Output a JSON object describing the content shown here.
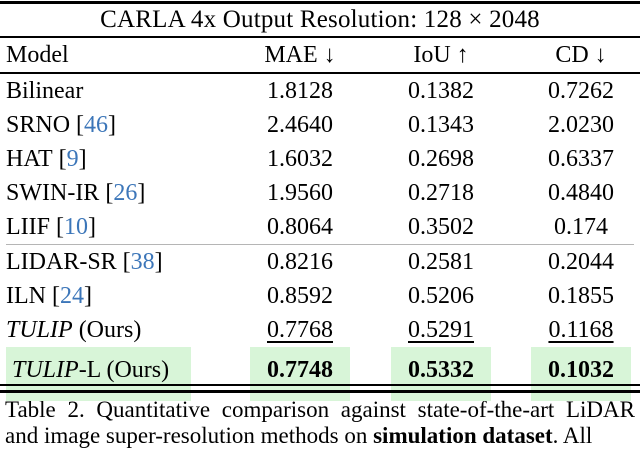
{
  "table": {
    "title": "CARLA 4x Output Resolution: 128 × 2048",
    "columns": [
      {
        "key": "model",
        "label": "Model"
      },
      {
        "key": "mae",
        "label": "MAE ↓"
      },
      {
        "key": "iou",
        "label": "IoU ↑"
      },
      {
        "key": "cd",
        "label": "CD ↓"
      }
    ],
    "rows": [
      {
        "name": "Bilinear",
        "italic": false,
        "cite": "",
        "suffix": "",
        "values": [
          "1.8128",
          "0.1382",
          "0.7262"
        ],
        "underline": false,
        "bold": false,
        "highlight": false,
        "separator_after": false
      },
      {
        "name": "SRNO",
        "italic": false,
        "cite": "46",
        "suffix": "",
        "values": [
          "2.4640",
          "0.1343",
          "2.0230"
        ],
        "underline": false,
        "bold": false,
        "highlight": false,
        "separator_after": false
      },
      {
        "name": "HAT",
        "italic": false,
        "cite": "9",
        "suffix": "",
        "values": [
          "1.6032",
          "0.2698",
          "0.6337"
        ],
        "underline": false,
        "bold": false,
        "highlight": false,
        "separator_after": false
      },
      {
        "name": "SWIN-IR",
        "italic": false,
        "cite": "26",
        "suffix": "",
        "values": [
          "1.9560",
          "0.2718",
          "0.4840"
        ],
        "underline": false,
        "bold": false,
        "highlight": false,
        "separator_after": false
      },
      {
        "name": "LIIF",
        "italic": false,
        "cite": "10",
        "suffix": "",
        "values": [
          "0.8064",
          "0.3502",
          "0.174"
        ],
        "underline": false,
        "bold": false,
        "highlight": false,
        "separator_after": true
      },
      {
        "name": "LIDAR-SR",
        "italic": false,
        "cite": "38",
        "suffix": "",
        "values": [
          "0.8216",
          "0.2581",
          "0.2044"
        ],
        "underline": false,
        "bold": false,
        "highlight": false,
        "separator_after": false
      },
      {
        "name": "ILN",
        "italic": false,
        "cite": "24",
        "suffix": "",
        "values": [
          "0.8592",
          "0.5206",
          "0.1855"
        ],
        "underline": false,
        "bold": false,
        "highlight": false,
        "separator_after": false
      },
      {
        "name": "TULIP",
        "italic": true,
        "cite": "",
        "suffix": " (Ours)",
        "values": [
          "0.7768",
          "0.5291",
          "0.1168"
        ],
        "underline": true,
        "bold": false,
        "highlight": false,
        "separator_after": false
      },
      {
        "name": "TULIP",
        "italic": true,
        "cite": "",
        "suffix": "-L (Ours)",
        "values": [
          "0.7748",
          "0.5332",
          "0.1032"
        ],
        "underline": false,
        "bold": true,
        "highlight": true,
        "separator_after": false
      }
    ]
  },
  "caption": {
    "parts": [
      {
        "text": "Table 2.  Quantitative comparison against state-of-the-art LiDAR and image super-resolution methods on ",
        "bold": false
      },
      {
        "text": "simulation dataset",
        "bold": true
      },
      {
        "text": ".  All",
        "bold": false
      }
    ]
  },
  "colors": {
    "highlight_green": "#d8f5d8",
    "citation_blue": "#3c76b9"
  }
}
